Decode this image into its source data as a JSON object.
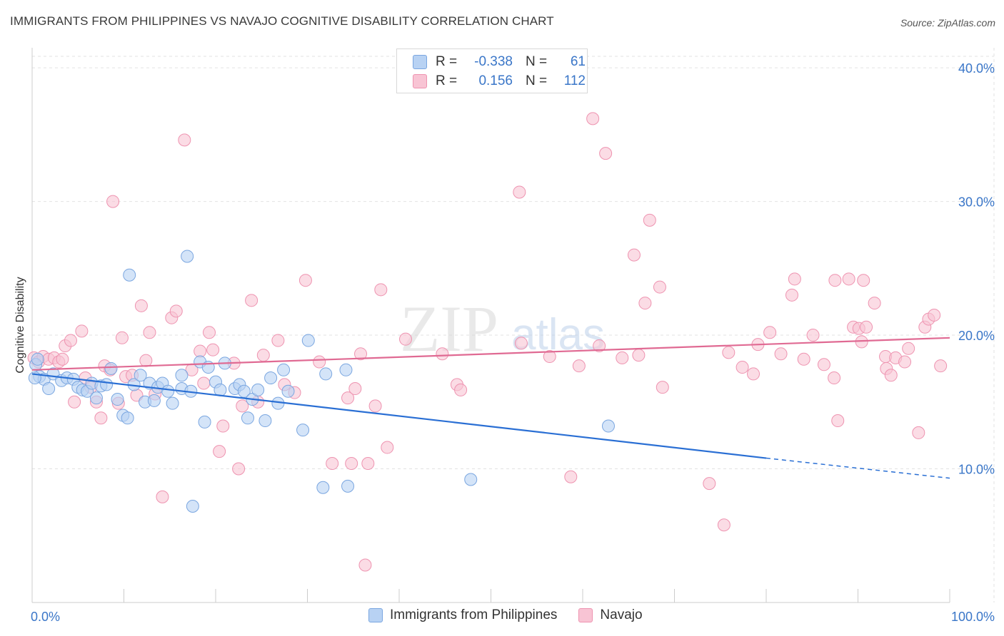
{
  "title": "IMMIGRANTS FROM PHILIPPINES VS NAVAJO COGNITIVE DISABILITY CORRELATION CHART",
  "source": "Source: ZipAtlas.com",
  "watermark": {
    "zip": "ZIP",
    "atlas": "atlas"
  },
  "colors": {
    "blue_fill": "#b8d2f3",
    "blue_stroke": "#7aa6e0",
    "blue_line": "#2a6fd4",
    "pink_fill": "#f8c4d4",
    "pink_stroke": "#ee93b0",
    "pink_line": "#e06a93",
    "axis_text": "#3a76c8",
    "grid": "#e2e2e2"
  },
  "legend_top": {
    "rows": [
      {
        "r_label": "R =",
        "r_value": "-0.338",
        "n_label": "N =",
        "n_value": "61"
      },
      {
        "r_label": "R =",
        "r_value": "0.156",
        "n_label": "N =",
        "n_value": "112"
      }
    ]
  },
  "bottom_legend": [
    "Immigrants from Philippines",
    "Navajo"
  ],
  "chart_data": {
    "type": "scatter",
    "ylabel": "Cognitive Disability",
    "x_tick_labels": [
      "0.0%",
      "100.0%"
    ],
    "y_tick_labels": [
      "10.0%",
      "20.0%",
      "30.0%",
      "40.0%"
    ],
    "y_ticks": [
      10,
      20,
      30,
      40
    ],
    "xlim": [
      0,
      100
    ],
    "ylim": [
      0,
      41.5
    ],
    "grid": true,
    "legend_position": "top-center",
    "series": [
      {
        "name": "Immigrants from Philippines",
        "trend": {
          "x_start": 0,
          "y_start": 17.1,
          "x_solid_end": 80,
          "y_solid_end": 10.8,
          "x_end": 100,
          "y_end": 9.3
        },
        "points": [
          [
            0.4,
            17.8
          ],
          [
            0.8,
            16.9
          ],
          [
            1.3,
            16.7
          ],
          [
            1.8,
            16.0
          ],
          [
            2.3,
            17.1
          ],
          [
            3.2,
            16.6
          ],
          [
            3.8,
            16.8
          ],
          [
            4.5,
            16.7
          ],
          [
            5.0,
            16.1
          ],
          [
            5.5,
            15.9
          ],
          [
            6.0,
            15.8
          ],
          [
            6.5,
            16.4
          ],
          [
            7.0,
            15.3
          ],
          [
            7.5,
            16.2
          ],
          [
            8.1,
            16.3
          ],
          [
            8.6,
            17.5
          ],
          [
            9.3,
            15.2
          ],
          [
            9.9,
            14.0
          ],
          [
            10.4,
            13.8
          ],
          [
            10.6,
            24.5
          ],
          [
            11.1,
            16.3
          ],
          [
            11.8,
            17.0
          ],
          [
            12.3,
            15.0
          ],
          [
            12.8,
            16.4
          ],
          [
            13.3,
            15.1
          ],
          [
            13.7,
            16.1
          ],
          [
            14.2,
            16.4
          ],
          [
            14.8,
            15.8
          ],
          [
            15.3,
            14.9
          ],
          [
            16.3,
            17.0
          ],
          [
            16.3,
            16.0
          ],
          [
            16.9,
            25.9
          ],
          [
            17.3,
            15.8
          ],
          [
            17.5,
            7.2
          ],
          [
            18.3,
            18.0
          ],
          [
            18.8,
            13.5
          ],
          [
            19.2,
            17.6
          ],
          [
            20.0,
            16.5
          ],
          [
            20.5,
            15.9
          ],
          [
            21.0,
            17.9
          ],
          [
            22.1,
            16.0
          ],
          [
            22.6,
            16.3
          ],
          [
            23.1,
            15.8
          ],
          [
            23.5,
            13.8
          ],
          [
            24.0,
            15.2
          ],
          [
            24.6,
            15.9
          ],
          [
            25.4,
            13.6
          ],
          [
            26.0,
            16.8
          ],
          [
            26.8,
            14.9
          ],
          [
            27.4,
            17.4
          ],
          [
            27.9,
            15.8
          ],
          [
            29.5,
            12.9
          ],
          [
            30.1,
            19.6
          ],
          [
            31.7,
            8.6
          ],
          [
            32.0,
            17.1
          ],
          [
            34.2,
            17.4
          ],
          [
            34.4,
            8.7
          ],
          [
            47.8,
            9.2
          ],
          [
            62.8,
            13.2
          ],
          [
            0.3,
            16.8
          ],
          [
            0.6,
            18.2
          ]
        ]
      },
      {
        "name": "Navajo",
        "trend": {
          "x_start": 0,
          "y_start": 17.4,
          "x_end": 100,
          "y_end": 19.8
        },
        "points": [
          [
            0.2,
            18.3
          ],
          [
            0.7,
            18.0
          ],
          [
            1.2,
            18.4
          ],
          [
            1.8,
            18.2
          ],
          [
            2.4,
            18.3
          ],
          [
            2.9,
            18.0
          ],
          [
            3.3,
            18.2
          ],
          [
            3.6,
            19.2
          ],
          [
            4.2,
            19.6
          ],
          [
            4.6,
            15.0
          ],
          [
            5.4,
            20.3
          ],
          [
            5.8,
            16.8
          ],
          [
            6.4,
            16.1
          ],
          [
            7.0,
            15.0
          ],
          [
            7.5,
            13.8
          ],
          [
            7.9,
            17.7
          ],
          [
            8.5,
            17.4
          ],
          [
            8.8,
            30.0
          ],
          [
            9.4,
            14.9
          ],
          [
            9.8,
            19.8
          ],
          [
            10.2,
            16.9
          ],
          [
            10.9,
            17.0
          ],
          [
            11.4,
            15.5
          ],
          [
            11.9,
            22.2
          ],
          [
            12.4,
            18.1
          ],
          [
            12.8,
            20.2
          ],
          [
            13.4,
            15.6
          ],
          [
            14.2,
            7.9
          ],
          [
            15.2,
            21.3
          ],
          [
            15.7,
            21.8
          ],
          [
            16.6,
            34.6
          ],
          [
            17.4,
            17.4
          ],
          [
            18.3,
            18.8
          ],
          [
            18.7,
            16.4
          ],
          [
            19.3,
            20.2
          ],
          [
            19.7,
            18.9
          ],
          [
            20.4,
            11.3
          ],
          [
            20.8,
            13.2
          ],
          [
            22.0,
            17.9
          ],
          [
            22.5,
            10.0
          ],
          [
            22.9,
            14.7
          ],
          [
            23.9,
            22.6
          ],
          [
            24.6,
            15.0
          ],
          [
            25.2,
            18.5
          ],
          [
            26.8,
            19.6
          ],
          [
            27.5,
            16.3
          ],
          [
            28.6,
            15.7
          ],
          [
            29.8,
            24.1
          ],
          [
            31.3,
            18.0
          ],
          [
            32.7,
            10.4
          ],
          [
            34.4,
            15.3
          ],
          [
            34.8,
            10.4
          ],
          [
            35.2,
            16.0
          ],
          [
            35.8,
            18.6
          ],
          [
            36.3,
            2.8
          ],
          [
            36.6,
            10.4
          ],
          [
            37.4,
            14.7
          ],
          [
            38.0,
            23.4
          ],
          [
            38.7,
            11.6
          ],
          [
            40.7,
            19.7
          ],
          [
            44.7,
            18.6
          ],
          [
            46.3,
            16.3
          ],
          [
            46.7,
            15.9
          ],
          [
            53.1,
            30.7
          ],
          [
            53.3,
            19.4
          ],
          [
            56.4,
            18.4
          ],
          [
            58.7,
            9.4
          ],
          [
            59.6,
            17.7
          ],
          [
            61.1,
            36.2
          ],
          [
            61.8,
            19.2
          ],
          [
            62.5,
            33.6
          ],
          [
            64.3,
            18.3
          ],
          [
            65.6,
            26.0
          ],
          [
            66.1,
            18.5
          ],
          [
            66.8,
            22.4
          ],
          [
            67.3,
            28.6
          ],
          [
            68.4,
            23.6
          ],
          [
            68.7,
            16.1
          ],
          [
            73.8,
            8.9
          ],
          [
            75.4,
            5.8
          ],
          [
            75.9,
            18.7
          ],
          [
            77.4,
            17.6
          ],
          [
            78.6,
            17.1
          ],
          [
            79.1,
            19.3
          ],
          [
            80.4,
            20.2
          ],
          [
            81.6,
            18.6
          ],
          [
            82.8,
            23.0
          ],
          [
            83.1,
            24.2
          ],
          [
            84.1,
            18.2
          ],
          [
            85.1,
            20.0
          ],
          [
            86.3,
            17.8
          ],
          [
            87.4,
            16.8
          ],
          [
            87.5,
            24.1
          ],
          [
            87.8,
            13.6
          ],
          [
            89.0,
            24.2
          ],
          [
            89.5,
            20.6
          ],
          [
            90.1,
            20.5
          ],
          [
            90.4,
            19.5
          ],
          [
            90.6,
            24.1
          ],
          [
            90.9,
            20.6
          ],
          [
            91.8,
            22.4
          ],
          [
            93.0,
            18.4
          ],
          [
            93.1,
            17.5
          ],
          [
            93.6,
            17.0
          ],
          [
            94.1,
            18.3
          ],
          [
            95.1,
            18.0
          ],
          [
            95.5,
            19.0
          ],
          [
            96.6,
            12.7
          ],
          [
            97.3,
            20.6
          ],
          [
            97.7,
            21.2
          ],
          [
            98.3,
            21.5
          ],
          [
            99.0,
            17.7
          ]
        ]
      }
    ]
  }
}
